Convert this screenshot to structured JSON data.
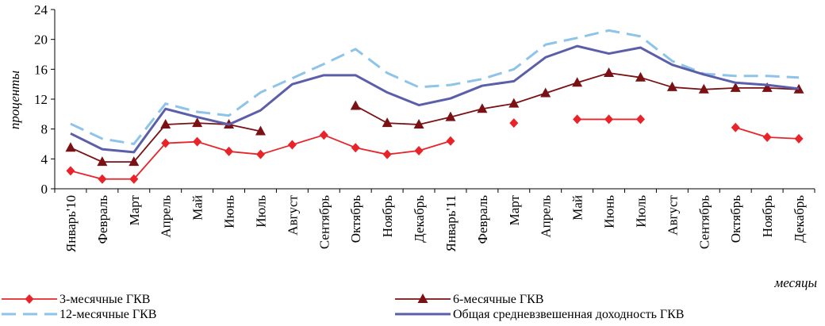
{
  "chart_data": {
    "type": "line",
    "title": "",
    "xlabel": "месяцы",
    "ylabel": "проценты",
    "ylim": [
      0,
      24
    ],
    "yticks": [
      0,
      4,
      8,
      12,
      16,
      20,
      24
    ],
    "grid": false,
    "legend_position": "bottom",
    "categories": [
      "Январь'10",
      "Февраль",
      "Март",
      "Апрель",
      "Май",
      "Июнь",
      "Июль",
      "Август",
      "Сентябрь",
      "Октябрь",
      "Ноябрь",
      "Декабрь",
      "Январь'11",
      "Февраль",
      "Март",
      "Апрель",
      "Май",
      "Июнь",
      "Июль",
      "Август",
      "Сентябрь",
      "Октябрь",
      "Ноябрь",
      "Декабрь"
    ],
    "series": [
      {
        "name": "3-месячные ГКВ",
        "color": "#e8242a",
        "marker": "diamond",
        "dash": "solid",
        "values": [
          2.4,
          1.3,
          1.3,
          6.1,
          6.3,
          5.0,
          4.6,
          5.9,
          7.2,
          5.5,
          4.6,
          5.1,
          6.4,
          null,
          8.8,
          null,
          9.3,
          9.3,
          9.3,
          null,
          null,
          8.2,
          6.9,
          6.7
        ]
      },
      {
        "name": "6-месячные ГКВ",
        "color": "#7a1114",
        "marker": "triangle",
        "dash": "solid",
        "values": [
          5.5,
          3.6,
          3.6,
          8.6,
          8.8,
          8.6,
          7.7,
          null,
          null,
          11.1,
          8.8,
          8.6,
          9.6,
          10.7,
          11.4,
          12.8,
          14.2,
          15.5,
          14.9,
          13.6,
          13.3,
          13.5,
          13.5,
          13.3
        ]
      },
      {
        "name": "12-месячные ГКВ",
        "color": "#8dc4e8",
        "marker": "none",
        "dash": "dashed",
        "values": [
          8.7,
          6.7,
          6.0,
          11.4,
          10.3,
          9.8,
          12.9,
          14.8,
          16.7,
          18.7,
          15.5,
          13.6,
          13.9,
          14.7,
          16.0,
          19.3,
          20.2,
          21.2,
          20.4,
          17.1,
          15.4,
          15.1,
          15.1,
          14.9
        ]
      },
      {
        "name": "Общая средневзвешенная доходность ГКВ",
        "color": "#5b5ea9",
        "marker": "none",
        "dash": "solid",
        "values": [
          7.4,
          5.3,
          4.9,
          10.7,
          9.6,
          8.6,
          10.5,
          14.0,
          15.2,
          15.2,
          12.9,
          11.2,
          12.1,
          13.8,
          14.4,
          17.6,
          19.1,
          18.1,
          18.9,
          16.6,
          15.3,
          14.2,
          13.9,
          13.4
        ]
      }
    ]
  }
}
